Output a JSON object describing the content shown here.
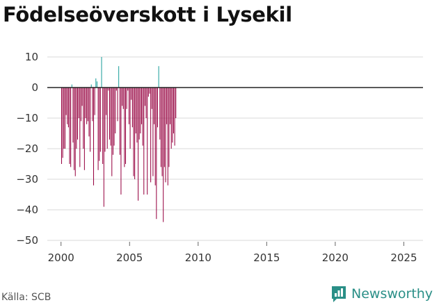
{
  "chart_data": {
    "type": "bar",
    "title": "Födelseöverskott i Lysekil",
    "xlabel": "",
    "ylabel": "",
    "ylim": [
      -50,
      10
    ],
    "xlim": [
      1999.0,
      2026.4
    ],
    "yticks": [
      10,
      0,
      -10,
      -20,
      -30,
      -40,
      -50
    ],
    "ytick_labels": [
      "10",
      "0",
      "−10",
      "−20",
      "−30",
      "−40",
      "−50"
    ],
    "xticks": [
      2000,
      2005,
      2010,
      2015,
      2020,
      2025
    ],
    "xtick_labels": [
      "2000",
      "2005",
      "2010",
      "2015",
      "2020",
      "2025"
    ],
    "grid": true,
    "frequency": "monthly",
    "start": "2000-01",
    "positive_color": "#1a9e9a",
    "negative_color": "#96003f",
    "values": [
      -25,
      -23,
      -20,
      -20,
      -9,
      -12,
      -13,
      -25,
      -26,
      1,
      -18,
      -27,
      -29,
      -20,
      -17,
      -10,
      -26,
      -11,
      -6,
      -20,
      -27,
      -10,
      -12,
      -11,
      -16,
      -21,
      1,
      -11,
      -32,
      -9,
      3,
      2,
      -27,
      -24,
      -21,
      10,
      -25,
      -39,
      -21,
      -9,
      -20,
      -1,
      -17,
      -19,
      -29,
      -22,
      -19,
      -15,
      -1,
      -11,
      7,
      -22,
      -35,
      -6,
      -7,
      -26,
      -25,
      -7,
      -1,
      -12,
      -20,
      -4,
      -13,
      -29,
      -30,
      -15,
      -18,
      -37,
      -17,
      -15,
      -12,
      -19,
      -35,
      -6,
      -10,
      -35,
      -3,
      -2,
      -31,
      -7,
      -29,
      -12,
      -32,
      -43,
      -13,
      7,
      -17,
      -26,
      -29,
      -44,
      -26,
      -31,
      -12,
      -32,
      -26,
      -12,
      -20,
      -18,
      -15,
      -19,
      -10
    ]
  },
  "source": "Källa: SCB",
  "brand": {
    "name": "Newsworthy",
    "logo_icon": "newsworthy-logo-icon"
  }
}
